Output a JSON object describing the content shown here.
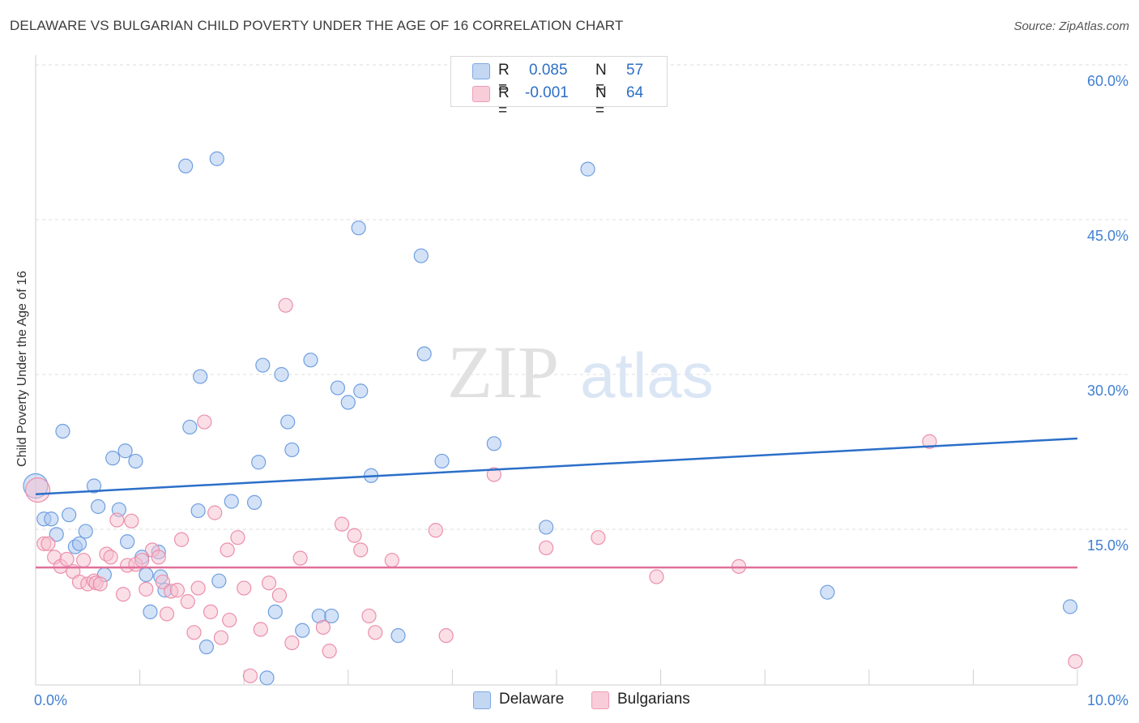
{
  "title": "DELAWARE VS BULGARIAN CHILD POVERTY UNDER THE AGE OF 16 CORRELATION CHART",
  "source": "Source: ZipAtlas.com",
  "watermark": {
    "zip": "ZIP",
    "atlas": "atlas"
  },
  "legend": {
    "items": [
      {
        "r_label": "R =",
        "r_value": "0.085",
        "n_label": "N =",
        "n_value": "57",
        "color": "#a9c6ef",
        "border": "#6f9fe0"
      },
      {
        "r_label": "R =",
        "r_value": "-0.001",
        "n_label": "N =",
        "n_value": "64",
        "color": "#f6bfd0",
        "border": "#ec8fac"
      }
    ]
  },
  "chart_data": {
    "type": "scatter",
    "title": "DELAWARE VS BULGARIAN CHILD POVERTY UNDER THE AGE OF 16 CORRELATION CHART",
    "xlabel": "",
    "ylabel": "Child Poverty Under the Age of 16",
    "xlim": [
      0,
      10
    ],
    "ylim": [
      0,
      60
    ],
    "x_tick_labels": [
      "0.0%",
      "10.0%"
    ],
    "y_ticks": [
      15,
      30,
      45,
      60
    ],
    "y_tick_labels": [
      "15.0%",
      "30.0%",
      "45.0%",
      "60.0%"
    ],
    "grid": true,
    "legend_position": "top-center",
    "series": [
      {
        "name": "Delaware",
        "color": "#a9c6ef",
        "stroke": "#6f9fe0",
        "line_color": "#2b6fc9",
        "trend": [
          [
            0,
            18.4
          ],
          [
            10,
            23.8
          ]
        ],
        "points": [
          [
            0.0,
            19.2
          ],
          [
            0.08,
            16.0
          ],
          [
            0.15,
            16.0
          ],
          [
            0.2,
            14.5
          ],
          [
            0.26,
            24.5
          ],
          [
            0.32,
            16.4
          ],
          [
            0.38,
            13.3
          ],
          [
            0.42,
            13.6
          ],
          [
            0.48,
            14.8
          ],
          [
            0.56,
            19.2
          ],
          [
            0.6,
            17.2
          ],
          [
            0.66,
            10.6
          ],
          [
            0.74,
            21.9
          ],
          [
            0.8,
            16.9
          ],
          [
            0.86,
            22.6
          ],
          [
            0.88,
            13.8
          ],
          [
            0.96,
            21.6
          ],
          [
            1.02,
            12.3
          ],
          [
            1.06,
            10.6
          ],
          [
            1.1,
            7.0
          ],
          [
            1.18,
            12.8
          ],
          [
            1.2,
            10.4
          ],
          [
            1.24,
            9.1
          ],
          [
            1.44,
            50.2
          ],
          [
            1.48,
            24.9
          ],
          [
            1.56,
            16.8
          ],
          [
            1.58,
            29.8
          ],
          [
            1.64,
            3.6
          ],
          [
            1.74,
            50.9
          ],
          [
            1.76,
            10.0
          ],
          [
            1.88,
            17.7
          ],
          [
            2.1,
            17.6
          ],
          [
            2.14,
            21.5
          ],
          [
            2.18,
            30.9
          ],
          [
            2.22,
            0.6
          ],
          [
            2.3,
            7.0
          ],
          [
            2.36,
            30.0
          ],
          [
            2.42,
            25.4
          ],
          [
            2.46,
            22.7
          ],
          [
            2.56,
            5.2
          ],
          [
            2.64,
            31.4
          ],
          [
            2.72,
            6.6
          ],
          [
            2.84,
            6.6
          ],
          [
            2.9,
            28.7
          ],
          [
            3.0,
            27.3
          ],
          [
            3.1,
            44.2
          ],
          [
            3.12,
            28.4
          ],
          [
            3.22,
            20.2
          ],
          [
            3.48,
            4.7
          ],
          [
            3.7,
            41.5
          ],
          [
            3.73,
            32.0
          ],
          [
            3.9,
            21.6
          ],
          [
            4.4,
            23.3
          ],
          [
            4.9,
            15.2
          ],
          [
            5.3,
            49.9
          ],
          [
            7.6,
            8.9
          ],
          [
            9.93,
            7.5
          ]
        ]
      },
      {
        "name": "Bulgarians",
        "color": "#f6bfd0",
        "stroke": "#ec8fac",
        "line_color": "#e0709a",
        "trend": [
          [
            0,
            11.3
          ],
          [
            10,
            11.3
          ]
        ],
        "points": [
          [
            0.02,
            18.8
          ],
          [
            0.08,
            13.6
          ],
          [
            0.12,
            13.6
          ],
          [
            0.18,
            12.3
          ],
          [
            0.24,
            11.4
          ],
          [
            0.3,
            12.1
          ],
          [
            0.36,
            10.9
          ],
          [
            0.42,
            9.9
          ],
          [
            0.46,
            12.0
          ],
          [
            0.5,
            9.7
          ],
          [
            0.56,
            10.0
          ],
          [
            0.58,
            9.8
          ],
          [
            0.62,
            9.7
          ],
          [
            0.68,
            12.6
          ],
          [
            0.72,
            12.3
          ],
          [
            0.78,
            15.9
          ],
          [
            0.84,
            8.7
          ],
          [
            0.88,
            11.5
          ],
          [
            0.92,
            15.8
          ],
          [
            0.96,
            11.6
          ],
          [
            1.02,
            12.0
          ],
          [
            1.06,
            9.2
          ],
          [
            1.12,
            13.0
          ],
          [
            1.18,
            12.3
          ],
          [
            1.22,
            9.9
          ],
          [
            1.26,
            6.8
          ],
          [
            1.3,
            9.0
          ],
          [
            1.36,
            9.1
          ],
          [
            1.4,
            14.0
          ],
          [
            1.46,
            8.0
          ],
          [
            1.52,
            5.0
          ],
          [
            1.56,
            9.3
          ],
          [
            1.62,
            25.4
          ],
          [
            1.68,
            7.0
          ],
          [
            1.72,
            16.6
          ],
          [
            1.78,
            4.5
          ],
          [
            1.84,
            13.0
          ],
          [
            1.86,
            6.2
          ],
          [
            1.94,
            14.2
          ],
          [
            2.0,
            9.3
          ],
          [
            2.06,
            0.8
          ],
          [
            2.16,
            5.3
          ],
          [
            2.24,
            9.8
          ],
          [
            2.34,
            8.6
          ],
          [
            2.4,
            36.7
          ],
          [
            2.46,
            4.0
          ],
          [
            2.54,
            12.2
          ],
          [
            2.76,
            5.5
          ],
          [
            2.82,
            3.2
          ],
          [
            2.94,
            15.5
          ],
          [
            3.06,
            14.4
          ],
          [
            3.12,
            13.0
          ],
          [
            3.2,
            6.6
          ],
          [
            3.26,
            5.0
          ],
          [
            3.42,
            12.0
          ],
          [
            3.84,
            14.9
          ],
          [
            3.94,
            4.7
          ],
          [
            4.4,
            20.3
          ],
          [
            4.9,
            13.2
          ],
          [
            5.4,
            14.2
          ],
          [
            5.96,
            10.4
          ],
          [
            6.75,
            11.4
          ],
          [
            8.58,
            23.5
          ],
          [
            9.98,
            2.2
          ]
        ]
      }
    ]
  }
}
